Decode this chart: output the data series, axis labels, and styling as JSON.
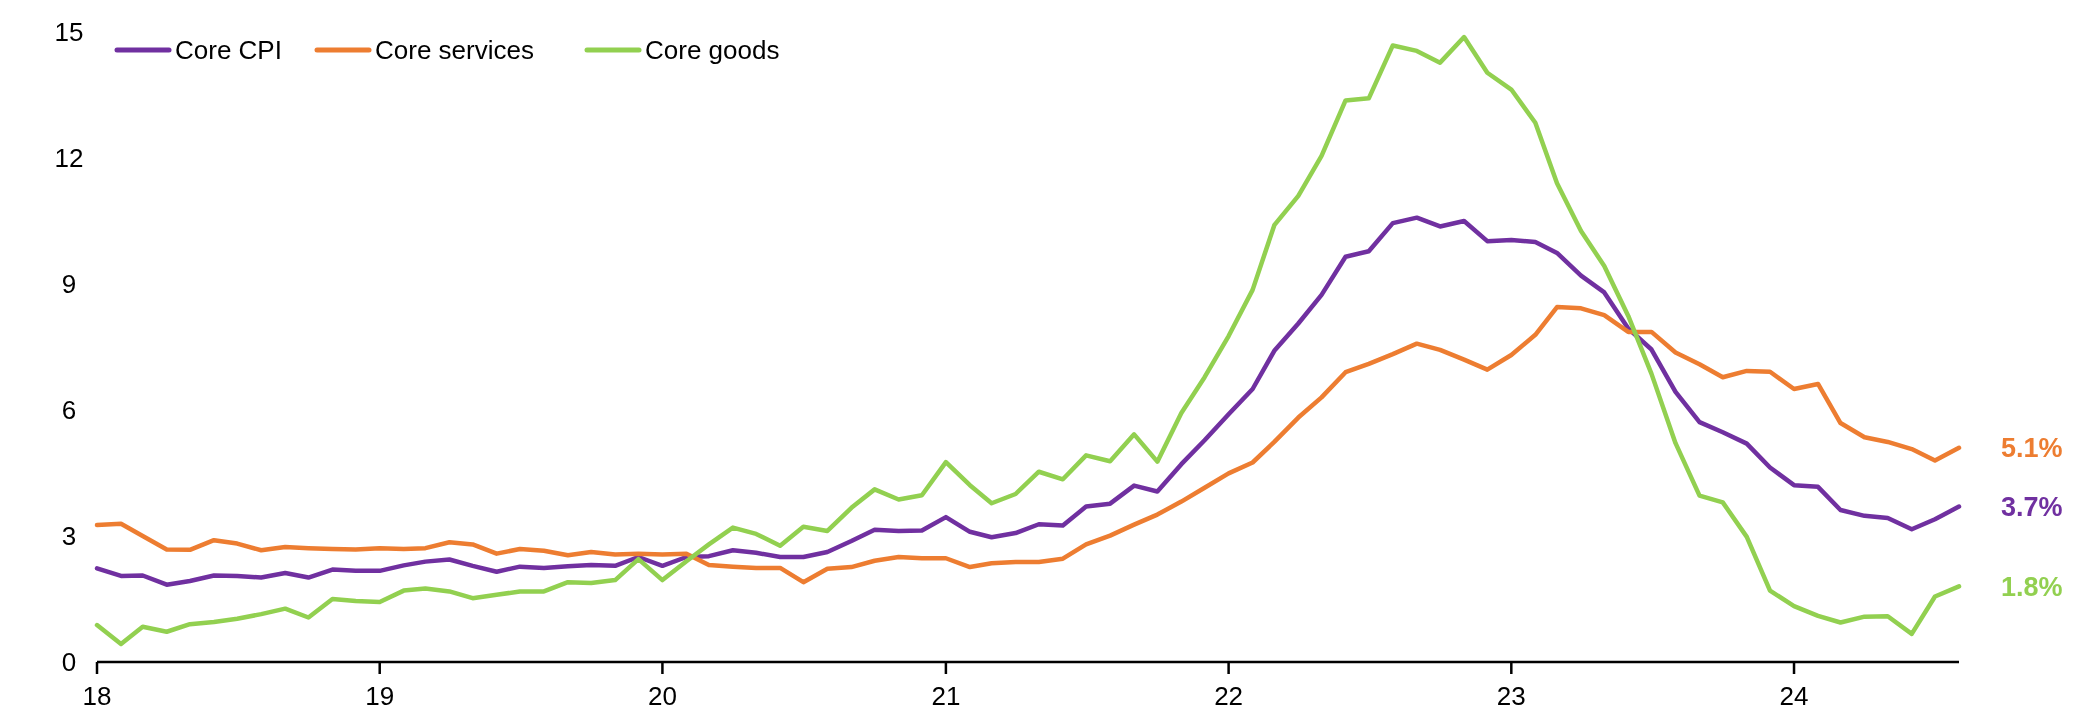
{
  "chart_data": {
    "type": "line",
    "x": [
      "2018-01",
      "2018-02",
      "2018-03",
      "2018-04",
      "2018-05",
      "2018-06",
      "2018-07",
      "2018-08",
      "2018-09",
      "2018-10",
      "2018-11",
      "2018-12",
      "2019-01",
      "2019-02",
      "2019-03",
      "2019-04",
      "2019-05",
      "2019-06",
      "2019-07",
      "2019-08",
      "2019-09",
      "2019-10",
      "2019-11",
      "2019-12",
      "2020-01",
      "2020-02",
      "2020-03",
      "2020-04",
      "2020-05",
      "2020-06",
      "2020-07",
      "2020-08",
      "2020-09",
      "2020-10",
      "2020-11",
      "2020-12",
      "2021-01",
      "2021-02",
      "2021-03",
      "2021-04",
      "2021-05",
      "2021-06",
      "2021-07",
      "2021-08",
      "2021-09",
      "2021-10",
      "2021-11",
      "2021-12",
      "2022-01",
      "2022-02",
      "2022-03",
      "2022-04",
      "2022-05",
      "2022-06",
      "2022-07",
      "2022-08",
      "2022-09",
      "2022-10",
      "2022-11",
      "2022-12",
      "2023-01",
      "2023-02",
      "2023-03",
      "2023-04",
      "2023-05",
      "2023-06",
      "2023-07",
      "2023-08",
      "2023-09",
      "2023-10",
      "2023-11",
      "2023-12",
      "2024-01",
      "2024-02",
      "2024-03",
      "2024-04",
      "2024-05",
      "2024-06",
      "2024-07",
      "2024-08"
    ],
    "series": [
      {
        "name": "Core CPI",
        "color": "#7030a0",
        "values": [
          2.23,
          2.05,
          2.06,
          1.84,
          1.93,
          2.06,
          2.05,
          2.01,
          2.12,
          2.01,
          2.2,
          2.17,
          2.17,
          2.3,
          2.39,
          2.44,
          2.29,
          2.15,
          2.27,
          2.24,
          2.28,
          2.31,
          2.29,
          2.5,
          2.29,
          2.5,
          2.52,
          2.66,
          2.6,
          2.5,
          2.5,
          2.62,
          2.88,
          3.15,
          3.12,
          3.13,
          3.45,
          3.1,
          2.97,
          3.07,
          3.28,
          3.25,
          3.7,
          3.77,
          4.2,
          4.06,
          4.71,
          5.28,
          5.9,
          6.5,
          7.41,
          8.06,
          8.74,
          9.65,
          9.78,
          10.45,
          10.58,
          10.37,
          10.5,
          10.02,
          10.05,
          10.0,
          9.74,
          9.2,
          8.8,
          7.94,
          7.44,
          6.43,
          5.71,
          5.47,
          5.2,
          4.63,
          4.21,
          4.17,
          3.62,
          3.48,
          3.43,
          3.16,
          3.4,
          3.7
        ],
        "value_labels": [
          null,
          null,
          null,
          null,
          null,
          null,
          null,
          null,
          null,
          null,
          null,
          null,
          null,
          null,
          null,
          null,
          null,
          null,
          null,
          null,
          null,
          null,
          null,
          null,
          null,
          null,
          null,
          null,
          null,
          null,
          null,
          null,
          null,
          null,
          null,
          null,
          null,
          null,
          null,
          null,
          null,
          null,
          null,
          null,
          null,
          null,
          null,
          null,
          null,
          null,
          null,
          null,
          null,
          null,
          null,
          null,
          null,
          null,
          null,
          null,
          null,
          null,
          null,
          null,
          null,
          null,
          null,
          null,
          null,
          null,
          null,
          null,
          null,
          null,
          null,
          null,
          null,
          null,
          null,
          "3.7%"
        ]
      },
      {
        "name": "Core services",
        "color": "#ed7d31",
        "values": [
          3.26,
          3.29,
          3.0,
          2.68,
          2.67,
          2.9,
          2.82,
          2.66,
          2.74,
          2.71,
          2.69,
          2.68,
          2.71,
          2.69,
          2.71,
          2.85,
          2.8,
          2.58,
          2.69,
          2.65,
          2.54,
          2.62,
          2.56,
          2.58,
          2.56,
          2.58,
          2.31,
          2.27,
          2.24,
          2.24,
          1.9,
          2.22,
          2.26,
          2.41,
          2.5,
          2.47,
          2.47,
          2.26,
          2.35,
          2.38,
          2.38,
          2.46,
          2.8,
          3.01,
          3.27,
          3.51,
          3.82,
          4.15,
          4.49,
          4.75,
          5.24,
          5.82,
          6.3,
          6.9,
          7.1,
          7.33,
          7.58,
          7.43,
          7.2,
          6.96,
          7.31,
          7.79,
          8.45,
          8.42,
          8.26,
          7.86,
          7.86,
          7.37,
          7.09,
          6.78,
          6.93,
          6.91,
          6.5,
          6.62,
          5.69,
          5.35,
          5.24,
          5.07,
          4.8,
          5.1
        ],
        "value_labels": [
          null,
          null,
          null,
          null,
          null,
          null,
          null,
          null,
          null,
          null,
          null,
          null,
          null,
          null,
          null,
          null,
          null,
          null,
          null,
          null,
          null,
          null,
          null,
          null,
          null,
          null,
          null,
          null,
          null,
          null,
          null,
          null,
          null,
          null,
          null,
          null,
          null,
          null,
          null,
          null,
          null,
          null,
          null,
          null,
          null,
          null,
          null,
          null,
          null,
          null,
          null,
          null,
          null,
          null,
          null,
          null,
          null,
          null,
          null,
          null,
          null,
          null,
          null,
          null,
          null,
          null,
          null,
          null,
          null,
          null,
          null,
          null,
          null,
          null,
          null,
          null,
          null,
          null,
          null,
          "5.1%"
        ]
      },
      {
        "name": "Core goods",
        "color": "#92d050",
        "values": [
          0.88,
          0.43,
          0.84,
          0.72,
          0.9,
          0.95,
          1.03,
          1.14,
          1.27,
          1.06,
          1.5,
          1.45,
          1.43,
          1.7,
          1.75,
          1.68,
          1.52,
          1.6,
          1.68,
          1.68,
          1.9,
          1.88,
          1.95,
          2.45,
          1.95,
          2.4,
          2.8,
          3.2,
          3.05,
          2.77,
          3.22,
          3.12,
          3.67,
          4.11,
          3.87,
          3.97,
          4.76,
          4.21,
          3.78,
          4.0,
          4.53,
          4.35,
          4.92,
          4.78,
          5.42,
          4.77,
          5.93,
          6.78,
          7.76,
          8.86,
          10.4,
          11.1,
          12.05,
          13.37,
          13.42,
          14.68,
          14.55,
          14.27,
          14.88,
          14.03,
          13.63,
          12.84,
          11.4,
          10.26,
          9.43,
          8.24,
          6.86,
          5.21,
          3.96,
          3.8,
          2.98,
          1.7,
          1.33,
          1.1,
          0.94,
          1.08,
          1.09,
          0.67,
          1.56,
          1.8
        ],
        "value_labels": [
          null,
          null,
          null,
          null,
          null,
          null,
          null,
          null,
          null,
          null,
          null,
          null,
          null,
          null,
          null,
          null,
          null,
          null,
          null,
          null,
          null,
          null,
          null,
          null,
          null,
          null,
          null,
          null,
          null,
          null,
          null,
          null,
          null,
          null,
          null,
          null,
          null,
          null,
          null,
          null,
          null,
          null,
          null,
          null,
          null,
          null,
          null,
          null,
          null,
          null,
          null,
          null,
          null,
          null,
          null,
          null,
          null,
          null,
          null,
          null,
          null,
          null,
          null,
          null,
          null,
          null,
          null,
          null,
          null,
          null,
          null,
          null,
          null,
          null,
          null,
          null,
          null,
          null,
          null,
          "1.8%"
        ]
      }
    ],
    "xlim": [
      "2018-01",
      "2024-08"
    ],
    "xticks": [
      {
        "value": "2018-01",
        "label": "18"
      },
      {
        "value": "2019-01",
        "label": "19"
      },
      {
        "value": "2020-01",
        "label": "20"
      },
      {
        "value": "2021-01",
        "label": "21"
      },
      {
        "value": "2022-01",
        "label": "22"
      },
      {
        "value": "2023-01",
        "label": "23"
      },
      {
        "value": "2024-01",
        "label": "24"
      }
    ],
    "ylim": [
      0,
      15
    ],
    "yticks": [
      0,
      3,
      6,
      9,
      12,
      15
    ],
    "grid": false,
    "legend": "top left",
    "marker": "none",
    "line_style": "solid"
  }
}
